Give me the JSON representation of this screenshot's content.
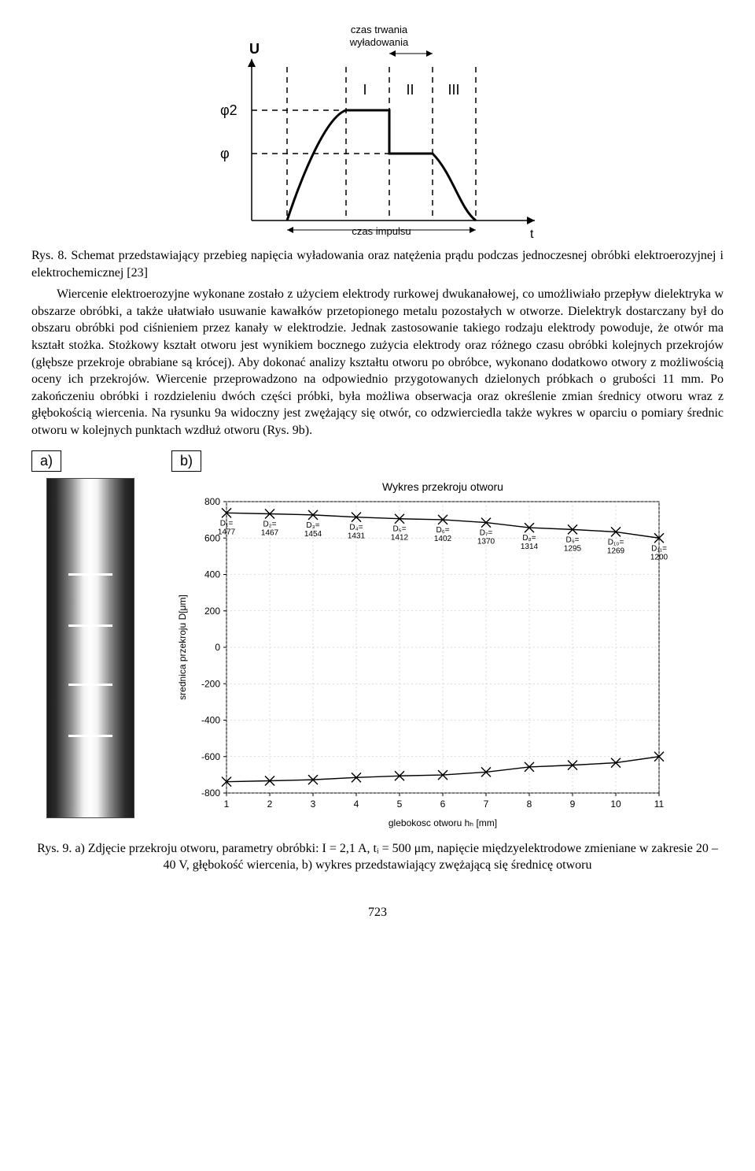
{
  "fig1": {
    "axis_y_label": "U",
    "axis_x_label": "t",
    "top_label": "czas trwania\nwyładowania",
    "bottom_label": "czas impulsu",
    "regions": [
      "I",
      "II",
      "III"
    ],
    "phi2": "φ2",
    "phi": "φ",
    "line_color": "#000000",
    "dash_color": "#000000",
    "line_width": 2
  },
  "caption1": "Rys. 8. Schemat przedstawiający przebieg napięcia wyładowania oraz natężenia prądu podczas jednoczesnej obróbki elektroerozyjnej i elektrochemicznej [23]",
  "body": "Wiercenie elektroerozyjne wykonane zostało z użyciem elektrody rurkowej dwukanałowej, co umożliwiało przepływ dielektryka w obszarze obróbki, a także ułatwiało usuwanie kawałków przetopionego metalu pozostałych w otworze. Dielektryk dostarczany był do obszaru obróbki pod ciśnieniem przez kanały w elektrodzie. Jednak zastosowanie takiego rodzaju elektrody powoduje, że otwór ma kształt stożka. Stożkowy kształt otworu jest wynikiem bocznego zużycia elektrody oraz różnego czasu obróbki kolejnych przekrojów (głębsze przekroje obrabiane są krócej). Aby dokonać analizy kształtu otworu po obróbce, wykonano dodatkowo otwory z możliwością oceny ich przekrojów. Wiercenie przeprowadzono na odpowiednio przygotowanych dzielonych próbkach o grubości 11 mm. Po zakończeniu obróbki i rozdzieleniu dwóch części próbki, była możliwa obserwacja oraz określenie zmian średnicy otworu wraz z głębokością wiercenia. Na rysunku 9a widoczny jest zwężający się otwór, co odzwierciedla także wykres w oparciu o pomiary średnic otworu w kolejnych punktach wzdłuż otworu (Rys. 9b).",
  "panel_labels": {
    "a": "a)",
    "b": "b)"
  },
  "chart": {
    "title": "Wykres przekroju otworu",
    "xlabel": "glebokosc otworu hₕ [mm]",
    "ylabel": "srednica przekroju D[μm]",
    "x": [
      1,
      2,
      3,
      4,
      5,
      6,
      7,
      8,
      9,
      10,
      11
    ],
    "y_top": [
      738,
      733,
      727,
      715,
      706,
      701,
      685,
      657,
      647,
      634,
      600
    ],
    "y_bottom": [
      -738,
      -733,
      -727,
      -715,
      -706,
      -701,
      -685,
      -657,
      -647,
      -634,
      -600
    ],
    "point_labels": [
      "D₁=\n1477",
      "D₂=\n1467",
      "D₃=\n1454",
      "D₄=\n1431",
      "D₅=\n1412",
      "D₆=\n1402",
      "D₇=\n1370",
      "D₈=\n1314",
      "D₉=\n1295",
      "D₁₀=\n1269",
      "D₁₁=\n1200"
    ],
    "ylim": [
      -800,
      800
    ],
    "ytick_step": 200,
    "xlim": [
      1,
      11
    ],
    "line_color": "#000000",
    "marker": "x",
    "marker_size": 6,
    "grid_color": "#bdbdbd",
    "background": "#ffffff",
    "border_color": "#000000",
    "label_fontsize": 12,
    "title_fontsize": 14
  },
  "caption9": "Rys. 9. a) Zdjęcie przekroju otworu, parametry obróbki: I = 2,1 A, tᵢ = 500 μm, napięcie międzyelektrodowe zmieniane w zakresie 20 – 40 V, głębokość wiercenia, b) wykres przedstawiający zwężającą się średnicę otworu",
  "page_number": "723"
}
